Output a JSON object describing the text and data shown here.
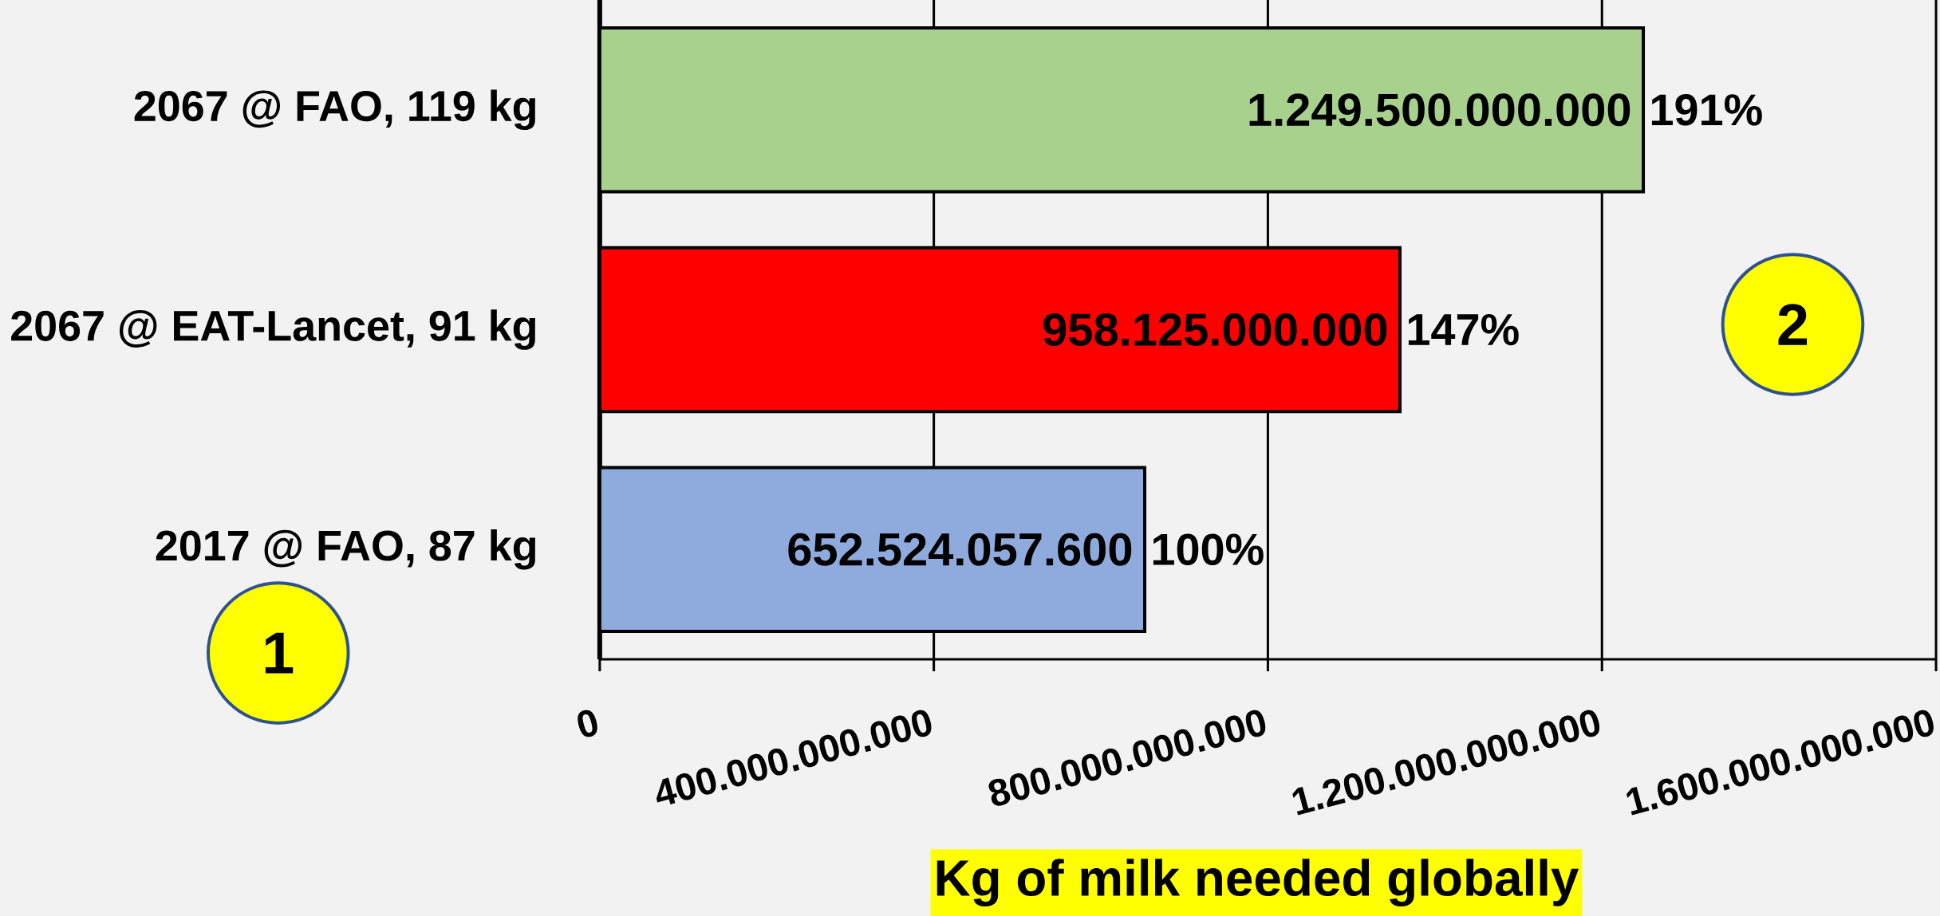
{
  "chart_data": {
    "type": "bar",
    "orientation": "horizontal",
    "categories": [
      "2067 @ FAO, 119 kg",
      "2067 @ EAT-Lancet, 91 kg",
      "2017 @ FAO, 87 kg"
    ],
    "values": [
      1249500000000,
      958125000000,
      652524057600
    ],
    "colors": [
      "#a9d18e",
      "#ff0000",
      "#8faadc"
    ],
    "value_labels": [
      "1.249.500.000.000",
      "958.125.000.000",
      "652.524.057.600"
    ],
    "xlabel": "Kg of milk needed globally",
    "xlim": [
      0,
      1600000000000
    ],
    "xticks": [
      0,
      {
        "value": 400000000000,
        "label": "400.000.000.000"
      },
      {
        "value": 800000000000,
        "label": "800.000.000.000"
      },
      {
        "value": 1200000000000,
        "label": "1.200.000.000.000"
      },
      {
        "value": 1600000000000,
        "label": "1.600.000.000.000"
      }
    ],
    "grid": "x",
    "annotations": [
      {
        "text": "191%",
        "x": 1249500000000,
        "y": "2067 @ FAO, 119 kg"
      },
      {
        "text": "147%",
        "x": 958125000000,
        "y": "2067 @ EAT-Lancet, 91 kg"
      },
      {
        "text": "100%",
        "x": 652524057600,
        "y": "2017 @ FAO, 87 kg"
      },
      "1",
      "2"
    ]
  }
}
